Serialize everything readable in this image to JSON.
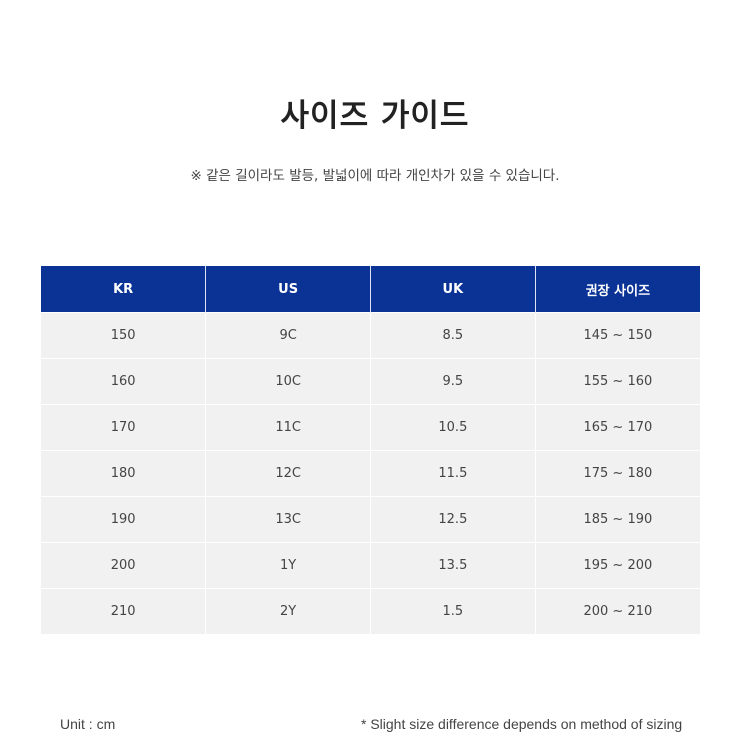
{
  "title": "사이즈 가이드",
  "note": "※ 같은 길이라도 발등, 발넓이에 따라 개인차가 있을 수 있습니다.",
  "table": {
    "headers": [
      "KR",
      "US",
      "UK",
      "권장 사이즈"
    ],
    "rows": [
      [
        "150",
        "9C",
        "8.5",
        "145 ~ 150"
      ],
      [
        "160",
        "10C",
        "9.5",
        "155 ~ 160"
      ],
      [
        "170",
        "11C",
        "10.5",
        "165 ~ 170"
      ],
      [
        "180",
        "12C",
        "11.5",
        "175 ~ 180"
      ],
      [
        "190",
        "13C",
        "12.5",
        "185 ~ 190"
      ],
      [
        "200",
        "1Y",
        "13.5",
        "195 ~ 200"
      ],
      [
        "210",
        "2Y",
        "1.5",
        "200 ~ 210"
      ]
    ]
  },
  "footer": {
    "unit": "Unit : cm",
    "disclaimer": "* Slight size difference depends on method of sizing"
  },
  "colors": {
    "header_bg": "#0b3396",
    "row_bg": "#f1f1f1"
  }
}
